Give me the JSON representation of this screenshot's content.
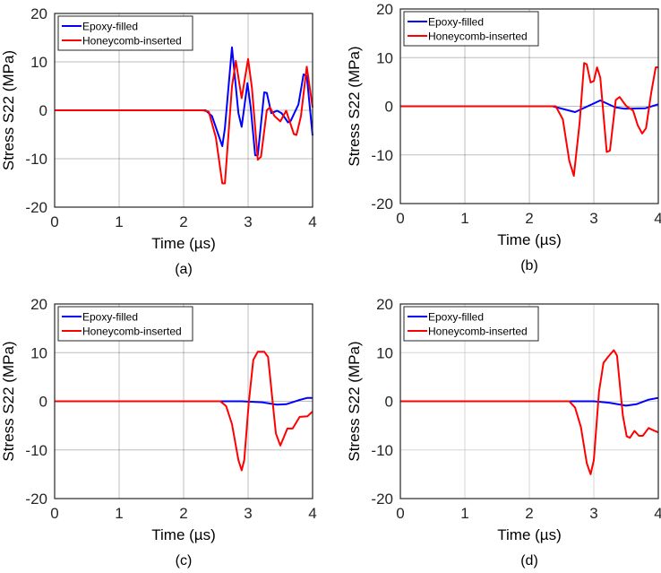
{
  "chart_data": [
    {
      "type": "line",
      "caption": "(a)",
      "xlabel": "Time (µs)",
      "ylabel": "Stress S22 (MPa)",
      "xlim": [
        0,
        4
      ],
      "ylim": [
        -20,
        20
      ],
      "xticks": [
        0,
        1,
        2,
        3,
        4
      ],
      "yticks": [
        -20,
        -10,
        0,
        10,
        20
      ],
      "grid": true,
      "legend": "top-left",
      "series": [
        {
          "name": "Epoxy-filled",
          "color": "#0000ff",
          "x": [
            0,
            2.34,
            2.44,
            2.6,
            2.64,
            2.75,
            2.85,
            2.9,
            2.99,
            3.04,
            3.11,
            3.15,
            3.25,
            3.29,
            3.36,
            3.45,
            3.52,
            3.62,
            3.66,
            3.78,
            3.86,
            3.91,
            4.0
          ],
          "y": [
            0,
            0,
            -1.2,
            -7.4,
            -3.7,
            13,
            -0.6,
            -3.4,
            5.6,
            0.6,
            -9.3,
            -9.3,
            3.7,
            3.6,
            -0.6,
            -0.1,
            -0.6,
            -2.5,
            -2.2,
            1.2,
            7.4,
            7.1,
            -5.2
          ]
        },
        {
          "name": "Honeycomb-inserted",
          "color": "#ff0000",
          "x": [
            0,
            2.3,
            2.39,
            2.5,
            2.6,
            2.64,
            2.75,
            2.81,
            2.9,
            3.0,
            3.06,
            3.15,
            3.2,
            3.29,
            3.34,
            3.41,
            3.5,
            3.59,
            3.71,
            3.75,
            3.82,
            3.91,
            4.0
          ],
          "y": [
            0,
            0,
            -0.3,
            -5.6,
            -15.1,
            -15.1,
            4.9,
            10.2,
            2.5,
            10.6,
            4.6,
            -10.2,
            -9.6,
            0,
            0.6,
            -1.2,
            -2.3,
            -0.1,
            -4.9,
            -5.1,
            -1.2,
            9,
            0.6
          ]
        }
      ]
    },
    {
      "type": "line",
      "caption": "(b)",
      "xlabel": "Time (µs)",
      "ylabel": "Stress S22 (MPa)",
      "xlim": [
        0,
        4
      ],
      "ylim": [
        -20,
        20
      ],
      "xticks": [
        0,
        1,
        2,
        3,
        4
      ],
      "yticks": [
        -20,
        -10,
        0,
        10,
        20
      ],
      "grid": true,
      "legend": "top-left",
      "series": [
        {
          "name": "Epoxy-filled",
          "color": "#0000ff",
          "x": [
            0,
            2.36,
            2.71,
            3.1,
            3.33,
            3.47,
            3.8,
            4.0
          ],
          "y": [
            0,
            0,
            -1.2,
            1.2,
            -0.2,
            -0.5,
            -0.4,
            0.4
          ]
        },
        {
          "name": "Honeycomb-inserted",
          "color": "#ff0000",
          "x": [
            0,
            2.41,
            2.52,
            2.62,
            2.69,
            2.78,
            2.85,
            2.89,
            2.95,
            3.0,
            3.05,
            3.1,
            3.2,
            3.25,
            3.34,
            3.4,
            3.5,
            3.61,
            3.68,
            3.75,
            3.81,
            3.89,
            3.96,
            4.0
          ],
          "y": [
            0,
            0,
            -2.7,
            -11.2,
            -14.3,
            -3.3,
            8.9,
            8.6,
            4.9,
            5.2,
            8,
            5.9,
            -9.4,
            -9.1,
            1.3,
            1.9,
            0.1,
            -0.9,
            -3.9,
            -5.6,
            -4.5,
            2.8,
            8,
            8
          ]
        }
      ]
    },
    {
      "type": "line",
      "caption": "(c)",
      "xlabel": "Time (µs)",
      "ylabel": "Stress S22 (MPa)",
      "xlim": [
        0,
        4
      ],
      "ylim": [
        -20,
        20
      ],
      "xticks": [
        0,
        1,
        2,
        3,
        4
      ],
      "yticks": [
        -20,
        -10,
        0,
        10,
        20
      ],
      "grid": true,
      "legend": "top-left",
      "series": [
        {
          "name": "Epoxy-filled",
          "color": "#0000ff",
          "x": [
            0,
            2.9,
            3.22,
            3.45,
            3.59,
            3.78,
            3.92,
            4.0
          ],
          "y": [
            0,
            0,
            -0.2,
            -0.7,
            -0.6,
            0.2,
            0.7,
            0.7
          ]
        },
        {
          "name": "Honeycomb-inserted",
          "color": "#ff0000",
          "x": [
            0,
            2.57,
            2.66,
            2.75,
            2.85,
            2.9,
            2.94,
            3.01,
            3.08,
            3.15,
            3.25,
            3.31,
            3.36,
            3.43,
            3.5,
            3.57,
            3.61,
            3.69,
            3.8,
            3.92,
            4.0
          ],
          "y": [
            0,
            0,
            -1,
            -4.7,
            -12.1,
            -14.2,
            -12.1,
            -0.4,
            8.5,
            10.2,
            10.2,
            9.1,
            2.6,
            -6.6,
            -9.1,
            -6.9,
            -5.6,
            -5.6,
            -3.2,
            -3.1,
            -2.1
          ]
        }
      ]
    },
    {
      "type": "line",
      "caption": "(d)",
      "xlabel": "Time (µs)",
      "ylabel": "Stress S22 (MPa)",
      "xlim": [
        0,
        4
      ],
      "ylim": [
        -20,
        20
      ],
      "xticks": [
        0,
        1,
        2,
        3,
        4
      ],
      "yticks": [
        -20,
        -10,
        0,
        10,
        20
      ],
      "grid": true,
      "legend": "top-left",
      "series": [
        {
          "name": "Epoxy-filled",
          "color": "#0000ff",
          "x": [
            0,
            3.0,
            3.24,
            3.5,
            3.66,
            3.84,
            4.0
          ],
          "y": [
            0,
            0,
            -0.3,
            -0.9,
            -0.6,
            0.3,
            0.7
          ]
        },
        {
          "name": "Honeycomb-inserted",
          "color": "#ff0000",
          "x": [
            0,
            2.62,
            2.71,
            2.8,
            2.89,
            2.95,
            3.0,
            3.08,
            3.15,
            3.22,
            3.31,
            3.36,
            3.45,
            3.51,
            3.56,
            3.63,
            3.7,
            3.76,
            3.85,
            3.93,
            4.0
          ],
          "y": [
            0,
            0,
            -1.3,
            -5.3,
            -12.7,
            -15,
            -12.1,
            2,
            7.9,
            9.1,
            10.5,
            9.4,
            -2.9,
            -7.2,
            -7.5,
            -6.1,
            -7.1,
            -7.1,
            -5.5,
            -6,
            -6.4
          ]
        }
      ]
    }
  ]
}
